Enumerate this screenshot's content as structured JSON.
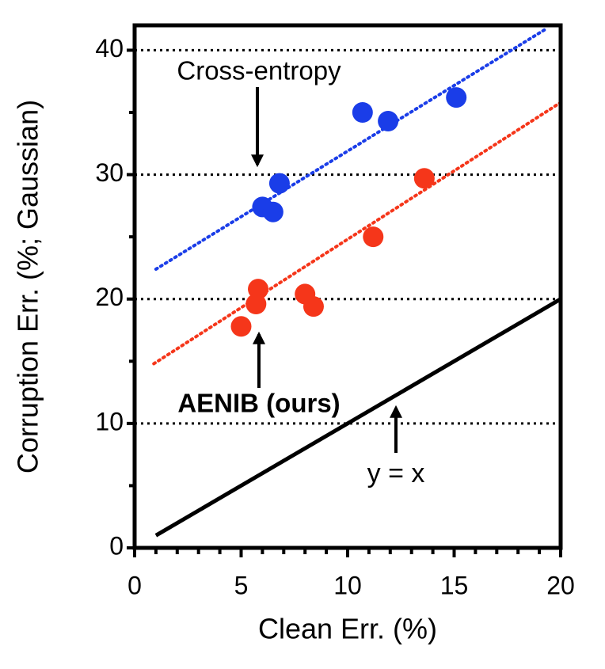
{
  "chart_data": {
    "type": "scatter",
    "xlabel": "Clean Err. (%)",
    "ylabel": "Corruption Err. (%; Gaussian)",
    "xlim": [
      0,
      20
    ],
    "ylim": [
      0,
      42
    ],
    "xticks": [
      0,
      5,
      10,
      15,
      20
    ],
    "yticks": [
      0,
      10,
      20,
      30,
      40
    ],
    "xminorticks": [
      1,
      2,
      3,
      4,
      6,
      7,
      8,
      9,
      11,
      12,
      13,
      14,
      16,
      17,
      18,
      19
    ],
    "yminorticks": [
      5,
      15,
      25,
      35
    ],
    "grid": true,
    "series": [
      {
        "name": "Cross-entropy",
        "color": "#1a3de8",
        "x": [
          6.0,
          6.5,
          6.8,
          10.7,
          11.9,
          15.1
        ],
        "values": [
          27.4,
          27.0,
          29.3,
          35.0,
          34.3,
          36.2
        ]
      },
      {
        "name": "AENIB (ours)",
        "color": "#f5361a",
        "x": [
          5.0,
          5.8,
          5.7,
          8.0,
          8.4,
          11.2,
          13.6
        ],
        "values": [
          17.8,
          20.8,
          19.6,
          20.4,
          19.4,
          25.0,
          29.7
        ]
      }
    ],
    "lines": [
      {
        "color": "#1a3de8",
        "style": "dotted",
        "x": [
          1.0,
          19.3
        ],
        "values": [
          22.4,
          41.7
        ]
      },
      {
        "color": "#f5361a",
        "style": "dotted",
        "x": [
          0.9,
          20
        ],
        "values": [
          14.8,
          35.8
        ]
      },
      {
        "name": "y = x",
        "color": "#000000",
        "style": "solid",
        "x": [
          1,
          20
        ],
        "values": [
          1,
          20
        ]
      }
    ]
  }
}
